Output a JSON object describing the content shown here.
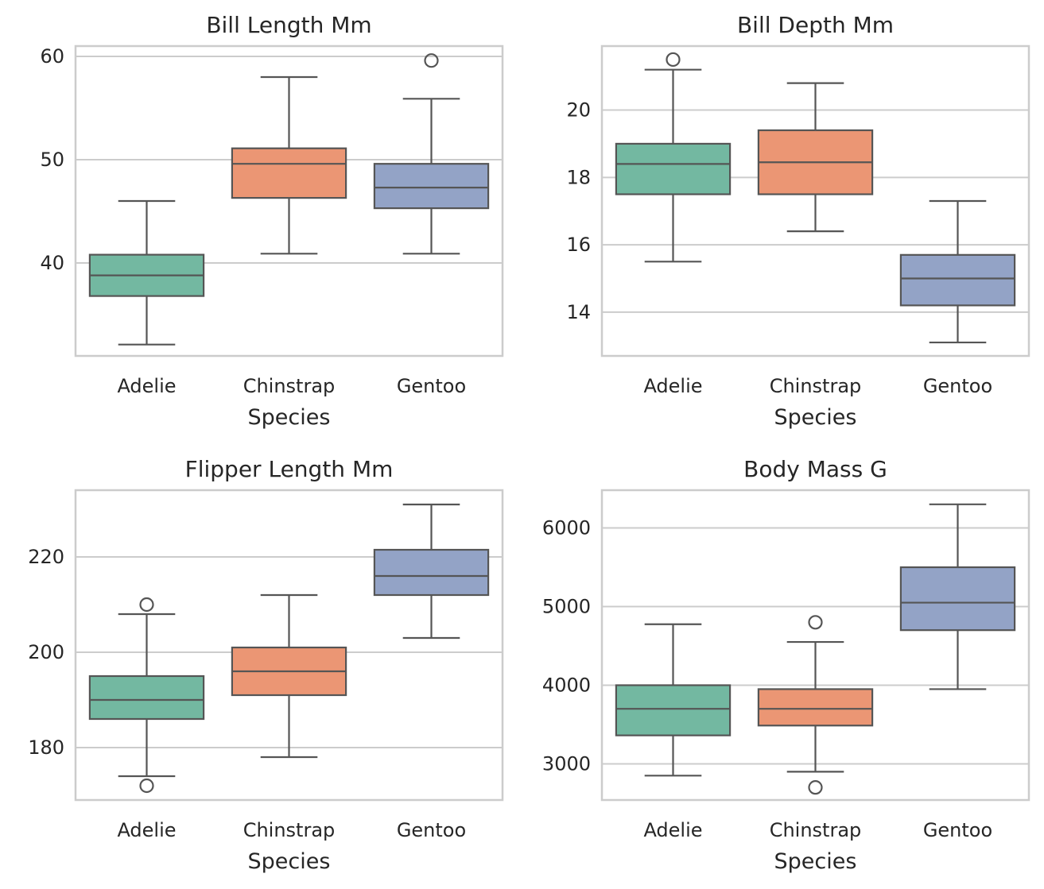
{
  "chart_data": [
    {
      "type": "box",
      "title": "Bill Length Mm",
      "xlabel": "Species",
      "ylabel": "",
      "categories": [
        "Adelie",
        "Chinstrap",
        "Gentoo"
      ],
      "ylim": [
        31.0,
        61.0
      ],
      "yticks": [
        40,
        50,
        60
      ],
      "grid": true,
      "boxes": [
        {
          "category": "Adelie",
          "whisker_low": 32.1,
          "q1": 36.8,
          "median": 38.8,
          "q3": 40.8,
          "whisker_high": 46.0,
          "outliers": []
        },
        {
          "category": "Chinstrap",
          "whisker_low": 40.9,
          "q1": 46.3,
          "median": 49.6,
          "q3": 51.1,
          "whisker_high": 58.0,
          "outliers": []
        },
        {
          "category": "Gentoo",
          "whisker_low": 40.9,
          "q1": 45.3,
          "median": 47.3,
          "q3": 49.6,
          "whisker_high": 55.9,
          "outliers": [
            59.6
          ]
        }
      ]
    },
    {
      "type": "box",
      "title": "Bill Depth Mm",
      "xlabel": "Species",
      "ylabel": "",
      "categories": [
        "Adelie",
        "Chinstrap",
        "Gentoo"
      ],
      "ylim": [
        12.7,
        21.9
      ],
      "yticks": [
        14,
        16,
        18,
        20
      ],
      "grid": true,
      "boxes": [
        {
          "category": "Adelie",
          "whisker_low": 15.5,
          "q1": 17.5,
          "median": 18.4,
          "q3": 19.0,
          "whisker_high": 21.2,
          "outliers": [
            21.5
          ]
        },
        {
          "category": "Chinstrap",
          "whisker_low": 16.4,
          "q1": 17.5,
          "median": 18.45,
          "q3": 19.4,
          "whisker_high": 20.8,
          "outliers": []
        },
        {
          "category": "Gentoo",
          "whisker_low": 13.1,
          "q1": 14.2,
          "median": 15.0,
          "q3": 15.7,
          "whisker_high": 17.3,
          "outliers": []
        }
      ]
    },
    {
      "type": "box",
      "title": "Flipper Length Mm",
      "xlabel": "Species",
      "ylabel": "",
      "categories": [
        "Adelie",
        "Chinstrap",
        "Gentoo"
      ],
      "ylim": [
        169.0,
        234.0
      ],
      "yticks": [
        180,
        200,
        220
      ],
      "grid": true,
      "boxes": [
        {
          "category": "Adelie",
          "whisker_low": 174,
          "q1": 186,
          "median": 190,
          "q3": 195,
          "whisker_high": 208,
          "outliers": [
            210,
            172
          ]
        },
        {
          "category": "Chinstrap",
          "whisker_low": 178,
          "q1": 191,
          "median": 196,
          "q3": 201,
          "whisker_high": 212,
          "outliers": []
        },
        {
          "category": "Gentoo",
          "whisker_low": 203,
          "q1": 212,
          "median": 216,
          "q3": 221.5,
          "whisker_high": 231,
          "outliers": []
        }
      ]
    },
    {
      "type": "box",
      "title": "Body Mass G",
      "xlabel": "Species",
      "ylabel": "",
      "categories": [
        "Adelie",
        "Chinstrap",
        "Gentoo"
      ],
      "ylim": [
        2540,
        6480
      ],
      "yticks": [
        3000,
        4000,
        5000,
        6000
      ],
      "grid": true,
      "boxes": [
        {
          "category": "Adelie",
          "whisker_low": 2850,
          "q1": 3362,
          "median": 3700,
          "q3": 4000,
          "whisker_high": 4775,
          "outliers": []
        },
        {
          "category": "Chinstrap",
          "whisker_low": 2900,
          "q1": 3487,
          "median": 3700,
          "q3": 3950,
          "whisker_high": 4550,
          "outliers": [
            4800,
            2700
          ]
        },
        {
          "category": "Gentoo",
          "whisker_low": 3950,
          "q1": 4700,
          "median": 5050,
          "q3": 5500,
          "whisker_high": 6300,
          "outliers": []
        }
      ]
    }
  ],
  "colors": {
    "Adelie": "#73b8a1",
    "Chinstrap": "#eb9674",
    "Gentoo": "#93a3c6"
  }
}
